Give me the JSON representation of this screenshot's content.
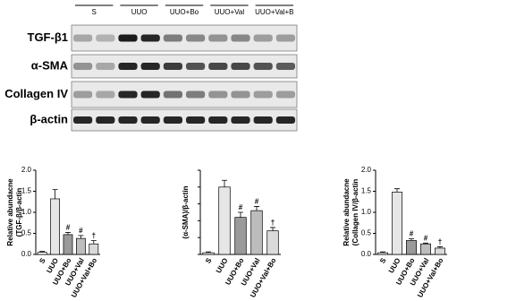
{
  "blot": {
    "groups": [
      "S",
      "UUO",
      "UUO+Bo",
      "UUO+Val",
      "UUO+Val+B"
    ],
    "rows": [
      "TGF-β1",
      "α-SMA",
      "Collagen IV",
      "β-actin"
    ]
  },
  "chart_data": [
    {
      "type": "bar",
      "ylabel": [
        "Relative abundacne",
        "(TGF-β/β-actin"
      ],
      "categories": [
        "S",
        "UUO",
        "UUO+Bo",
        "UUO+Val",
        "UUO+Val+Bo"
      ],
      "values": [
        0.05,
        1.32,
        0.47,
        0.38,
        0.25
      ],
      "errors": [
        0.02,
        0.22,
        0.05,
        0.07,
        0.08
      ],
      "annotations": [
        null,
        null,
        "#",
        "#",
        "†"
      ],
      "colors": [
        "#ffffff",
        "#e6e6e6",
        "#9a9a9a",
        "#bdbdbd",
        "#dadada"
      ],
      "ylim": [
        0,
        2.0
      ],
      "yticks": [
        {
          "value": 0,
          "label": "0.0"
        },
        {
          "value": 0.5,
          "label": "0.5"
        },
        {
          "value": 1.0,
          "label": "1.0"
        },
        {
          "value": 1.5,
          "label": "1.5"
        },
        {
          "value": 2.0,
          "label": "2.0"
        }
      ]
    },
    {
      "type": "bar",
      "ylabel": [
        "(α-SMA)/β-actin"
      ],
      "categories": [
        "S",
        "UUO",
        "UUO+Bo",
        "UUO+Val",
        "UUO+Val+Bo"
      ],
      "values": [
        0.02,
        0.8,
        0.44,
        0.52,
        0.28
      ],
      "errors": [
        0.01,
        0.08,
        0.06,
        0.05,
        0.04
      ],
      "annotations": [
        null,
        null,
        "#",
        "#",
        "†"
      ],
      "colors": [
        "#ffffff",
        "#e6e6e6",
        "#9a9a9a",
        "#bdbdbd",
        "#dadada"
      ],
      "ylim": [
        0,
        1.0
      ],
      "yticks": [
        0,
        0.2,
        0.4,
        0.6,
        0.8,
        1.0
      ]
    },
    {
      "type": "bar",
      "ylabel": [
        "Relative abundacne",
        "(Collagen IV/β-actin"
      ],
      "categories": [
        "S",
        "UUO",
        "UUO+Bo",
        "UUO+Val",
        "UUO+Val+Bo"
      ],
      "values": [
        0.04,
        1.48,
        0.33,
        0.25,
        0.15
      ],
      "errors": [
        0.02,
        0.08,
        0.04,
        0.02,
        0.03
      ],
      "annotations": [
        null,
        null,
        "#",
        "#",
        "†"
      ],
      "colors": [
        "#ffffff",
        "#e6e6e6",
        "#9a9a9a",
        "#bdbdbd",
        "#dadada"
      ],
      "ylim": [
        0,
        2.0
      ],
      "yticks": [
        {
          "value": 0,
          "label": "0.0"
        },
        {
          "value": 0.5,
          "label": "0.5"
        },
        {
          "value": 1.0,
          "label": "1.0"
        },
        {
          "value": 1.5,
          "label": "1.5"
        },
        {
          "value": 2.0,
          "label": "2.0"
        }
      ]
    }
  ]
}
